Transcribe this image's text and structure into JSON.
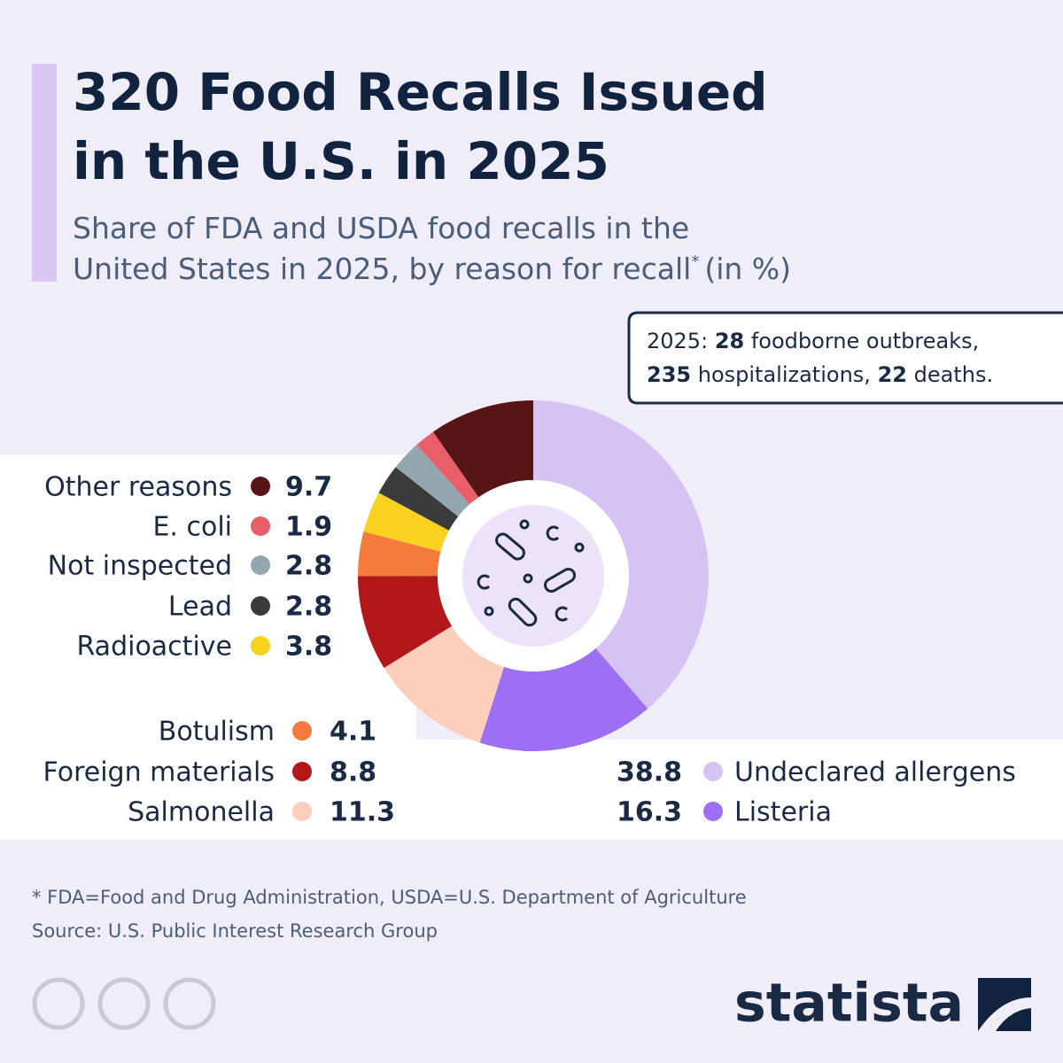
{
  "chart_data": {
    "type": "donut",
    "title_lines": [
      "320 Food Recalls Issued",
      "in the U.S. in 2025"
    ],
    "subtitle_lines": [
      "Share of FDA and USDA food recalls in the",
      "United States in 2025, by reason for recall"
    ],
    "subtitle_marker": "*",
    "subtitle_suffix": "(in %)",
    "annotation": {
      "year": "2025:",
      "outbreaks": 28,
      "outbreaks_label": "foodborne outbreaks,",
      "hospitalizations": 235,
      "hospitalizations_label": "hospitalizations,",
      "deaths": 22,
      "deaths_label": "deaths."
    },
    "categories": [
      "Undeclared allergens",
      "Listeria",
      "Salmonella",
      "Foreign materials",
      "Botulism",
      "Radioactive",
      "Lead",
      "Not inspected",
      "E. coli",
      "Other reasons"
    ],
    "values": [
      38.8,
      16.3,
      11.3,
      8.8,
      4.1,
      3.8,
      2.8,
      2.8,
      1.9,
      9.7
    ],
    "colors": [
      "#d6c3f3",
      "#9d6ff2",
      "#fccfbd",
      "#b3171a",
      "#f47b3b",
      "#f8d21f",
      "#3b3b3b",
      "#93a7b1",
      "#e95f69",
      "#571615"
    ],
    "footnote": "* FDA=Food and Drug Administration, USDA=U.S. Department of Agriculture",
    "source": "Source: U.S. Public Interest Research Group",
    "brand": "statista"
  }
}
